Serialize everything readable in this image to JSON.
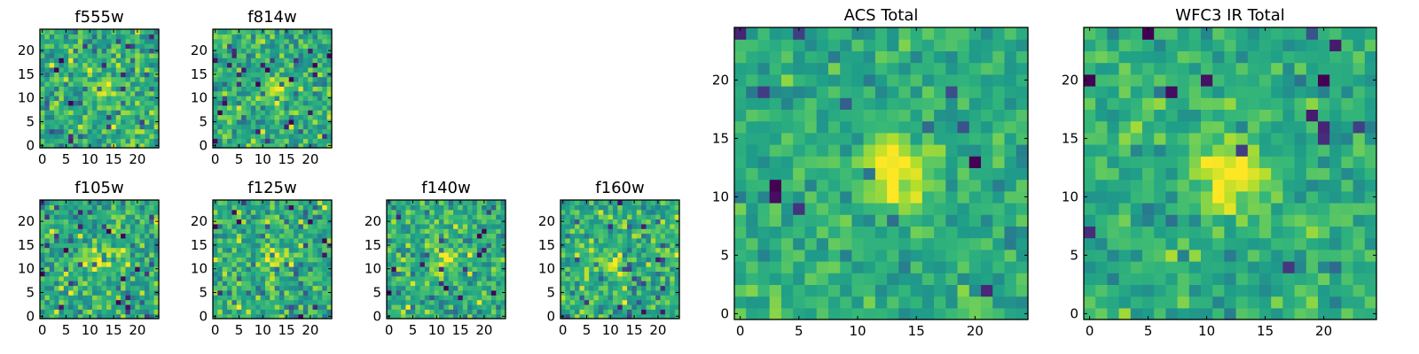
{
  "figure": {
    "background": "#ffffff"
  },
  "chart_data": [
    {
      "type": "heatmap",
      "title": "f555w",
      "xlim": [
        -0.5,
        24.5
      ],
      "ylim": [
        -0.5,
        24.5
      ],
      "xticks": [
        0,
        5,
        10,
        15,
        20
      ],
      "yticks": [
        0,
        5,
        10,
        15,
        20
      ],
      "colormap": "viridis",
      "source_center": [
        13,
        12
      ],
      "grid": false
    },
    {
      "type": "heatmap",
      "title": "f814w",
      "xlim": [
        -0.5,
        24.5
      ],
      "ylim": [
        -0.5,
        24.5
      ],
      "xticks": [
        0,
        5,
        10,
        15,
        20
      ],
      "yticks": [
        0,
        5,
        10,
        15,
        20
      ],
      "colormap": "viridis",
      "source_center": [
        13,
        12
      ],
      "grid": false
    },
    {
      "type": "heatmap",
      "title": "f105w",
      "xlim": [
        -0.5,
        24.5
      ],
      "ylim": [
        -0.5,
        24.5
      ],
      "xticks": [
        0,
        5,
        10,
        15,
        20
      ],
      "yticks": [
        0,
        5,
        10,
        15,
        20
      ],
      "colormap": "viridis",
      "source_center": [
        12,
        12
      ],
      "grid": false
    },
    {
      "type": "heatmap",
      "title": "f125w",
      "xlim": [
        -0.5,
        24.5
      ],
      "ylim": [
        -0.5,
        24.5
      ],
      "xticks": [
        0,
        5,
        10,
        15,
        20
      ],
      "yticks": [
        0,
        5,
        10,
        15,
        20
      ],
      "colormap": "viridis",
      "source_center": [
        12,
        12
      ],
      "grid": false
    },
    {
      "type": "heatmap",
      "title": "f140w",
      "xlim": [
        -0.5,
        24.5
      ],
      "ylim": [
        -0.5,
        24.5
      ],
      "xticks": [
        0,
        5,
        10,
        15,
        20
      ],
      "yticks": [
        0,
        5,
        10,
        15,
        20
      ],
      "colormap": "viridis",
      "source_center": [
        12,
        12
      ],
      "grid": false
    },
    {
      "type": "heatmap",
      "title": "f160w",
      "xlim": [
        -0.5,
        24.5
      ],
      "ylim": [
        -0.5,
        24.5
      ],
      "xticks": [
        0,
        5,
        10,
        15,
        20
      ],
      "yticks": [
        0,
        5,
        10,
        15,
        20
      ],
      "colormap": "viridis",
      "source_center": [
        11,
        11
      ],
      "grid": false
    },
    {
      "type": "heatmap",
      "title": "ACS Total",
      "xlim": [
        -0.5,
        24.5
      ],
      "ylim": [
        -0.5,
        24.5
      ],
      "xticks": [
        0,
        5,
        10,
        15,
        20
      ],
      "yticks": [
        0,
        5,
        10,
        15,
        20
      ],
      "colormap": "viridis",
      "source_center": [
        13,
        12
      ],
      "grid": false
    },
    {
      "type": "heatmap",
      "title": "WFC3 IR Total",
      "xlim": [
        -0.5,
        24.5
      ],
      "ylim": [
        -0.5,
        24.5
      ],
      "xticks": [
        0,
        5,
        10,
        15,
        20
      ],
      "yticks": [
        0,
        5,
        10,
        15,
        20
      ],
      "colormap": "viridis",
      "source_center": [
        12,
        12
      ],
      "grid": false
    }
  ]
}
